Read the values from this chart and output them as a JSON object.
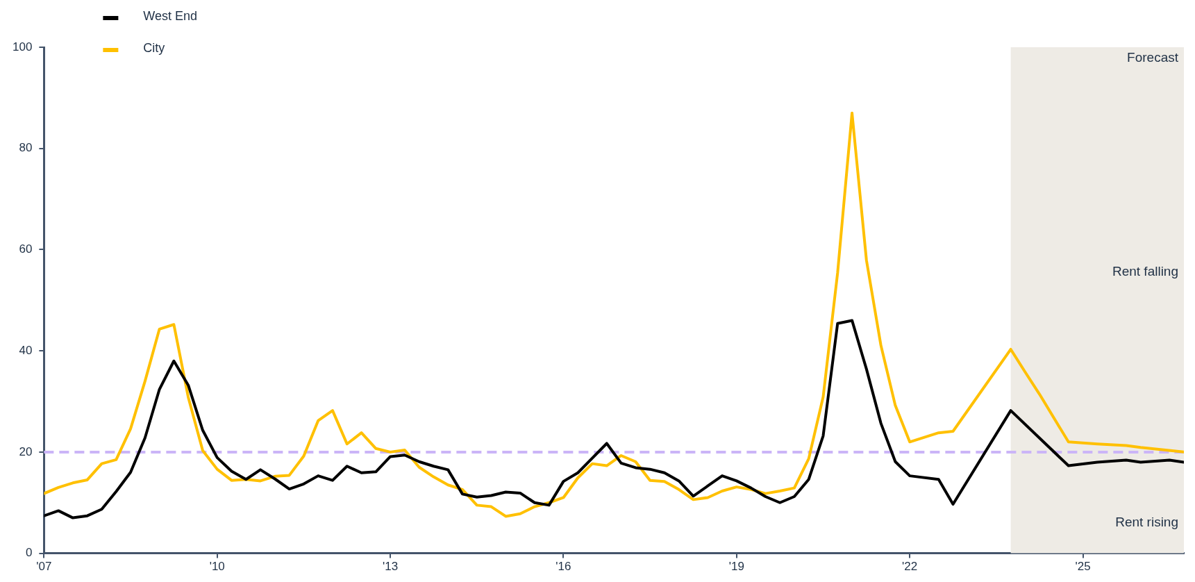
{
  "chart_data": {
    "type": "line",
    "xlim": [
      2007,
      2026.75
    ],
    "xticks": [
      {
        "value": 2007,
        "label": "'07"
      },
      {
        "value": 2010,
        "label": "'10"
      },
      {
        "value": 2013,
        "label": "'13"
      },
      {
        "value": 2016,
        "label": "'16"
      },
      {
        "value": 2019,
        "label": "'19"
      },
      {
        "value": 2022,
        "label": "'22"
      },
      {
        "value": 2025,
        "label": "'25"
      }
    ],
    "ylim": [
      0,
      100
    ],
    "yticks": [
      0,
      20,
      40,
      60,
      80,
      100
    ],
    "legend": "top left",
    "line_style": "solid",
    "marker": "none",
    "series": [
      {
        "name": "West End",
        "color": "#000000",
        "x": [
          2007,
          2007.25,
          2007.5,
          2007.75,
          2008,
          2008.25,
          2008.5,
          2008.75,
          2009,
          2009.25,
          2009.5,
          2009.75,
          2010,
          2010.25,
          2010.5,
          2010.75,
          2011,
          2011.25,
          2011.5,
          2011.75,
          2012,
          2012.25,
          2012.5,
          2012.75,
          2013,
          2013.25,
          2013.5,
          2013.75,
          2014,
          2014.25,
          2014.5,
          2014.75,
          2015,
          2015.25,
          2015.5,
          2015.75,
          2016,
          2016.25,
          2016.5,
          2016.75,
          2017,
          2017.25,
          2017.5,
          2017.75,
          2018,
          2018.25,
          2018.5,
          2018.75,
          2019,
          2019.25,
          2019.5,
          2019.75,
          2020,
          2020.25,
          2020.5,
          2020.75,
          2021,
          2021.25,
          2021.5,
          2021.75,
          2022,
          2022.5,
          2022.75,
          2023.75,
          2024.75,
          2025.25,
          2025.75,
          2026,
          2026.25,
          2026.5,
          2026.75
        ],
        "values": [
          7.4,
          8.4,
          7.0,
          7.4,
          8.7,
          12.2,
          16.0,
          22.8,
          32.4,
          38.0,
          33.2,
          24.3,
          18.9,
          16.2,
          14.6,
          16.5,
          14.7,
          12.7,
          13.7,
          15.3,
          14.4,
          17.2,
          15.9,
          16.1,
          19.1,
          19.4,
          18.1,
          17.2,
          16.5,
          11.7,
          11.1,
          11.4,
          12.1,
          11.9,
          10.0,
          9.5,
          14.2,
          15.9,
          18.8,
          21.7,
          17.8,
          16.9,
          16.6,
          15.9,
          14.3,
          11.3,
          13.3,
          15.3,
          14.3,
          12.9,
          11.2,
          10.0,
          11.2,
          14.6,
          23.2,
          45.4,
          46.0,
          36.4,
          25.7,
          18.1,
          15.3,
          14.6,
          9.7,
          28.2,
          17.3,
          18.0,
          18.4,
          18.0,
          18.2,
          18.4,
          18.0
        ]
      },
      {
        "name": "City",
        "color": "#ffc000",
        "x": [
          2007,
          2007.25,
          2007.5,
          2007.75,
          2008,
          2008.25,
          2008.5,
          2008.75,
          2009,
          2009.25,
          2009.5,
          2009.75,
          2010,
          2010.25,
          2010.5,
          2010.75,
          2011,
          2011.25,
          2011.5,
          2011.75,
          2012,
          2012.25,
          2012.5,
          2012.75,
          2013,
          2013.25,
          2013.5,
          2013.75,
          2014,
          2014.25,
          2014.5,
          2014.75,
          2015,
          2015.25,
          2015.5,
          2015.75,
          2016,
          2016.25,
          2016.5,
          2016.75,
          2017,
          2017.25,
          2017.5,
          2017.75,
          2018,
          2018.25,
          2018.5,
          2018.75,
          2019,
          2019.25,
          2019.5,
          2019.75,
          2020,
          2020.25,
          2020.5,
          2020.75,
          2021,
          2021.25,
          2021.5,
          2021.75,
          2022,
          2022.5,
          2022.75,
          2023.75,
          2024,
          2024.25,
          2024.75,
          2025.25,
          2025.75,
          2026,
          2026.75
        ],
        "values": [
          11.8,
          13.0,
          13.9,
          14.5,
          17.7,
          18.5,
          24.6,
          34.0,
          44.3,
          45.2,
          30.8,
          20.3,
          16.6,
          14.4,
          14.6,
          14.3,
          15.2,
          15.4,
          19.2,
          26.2,
          28.2,
          21.6,
          23.8,
          20.7,
          20.0,
          20.4,
          17.0,
          15.1,
          13.5,
          12.6,
          9.5,
          9.2,
          7.3,
          7.8,
          9.2,
          10.0,
          11.0,
          14.9,
          17.7,
          17.3,
          19.3,
          18.1,
          14.4,
          14.2,
          12.6,
          10.6,
          11.0,
          12.3,
          13.1,
          12.6,
          11.8,
          12.3,
          12.9,
          18.7,
          30.9,
          55.4,
          87,
          57.9,
          41.1,
          29.2,
          22.0,
          23.8,
          24.1,
          40.3,
          35.8,
          31.4,
          22.0,
          21.6,
          21.3,
          20.9,
          20.0
        ]
      }
    ],
    "ref_lines": [
      {
        "axis": "y",
        "value": 20,
        "color": "#cbb5f7",
        "line_style": "dashed"
      }
    ],
    "bands": [
      {
        "axis": "x",
        "from": 2023.75,
        "to": 2026.75,
        "label": "Forecast",
        "color": "#eeebe5"
      }
    ],
    "annotations": [
      "Rent falling",
      "Rent rising"
    ]
  }
}
